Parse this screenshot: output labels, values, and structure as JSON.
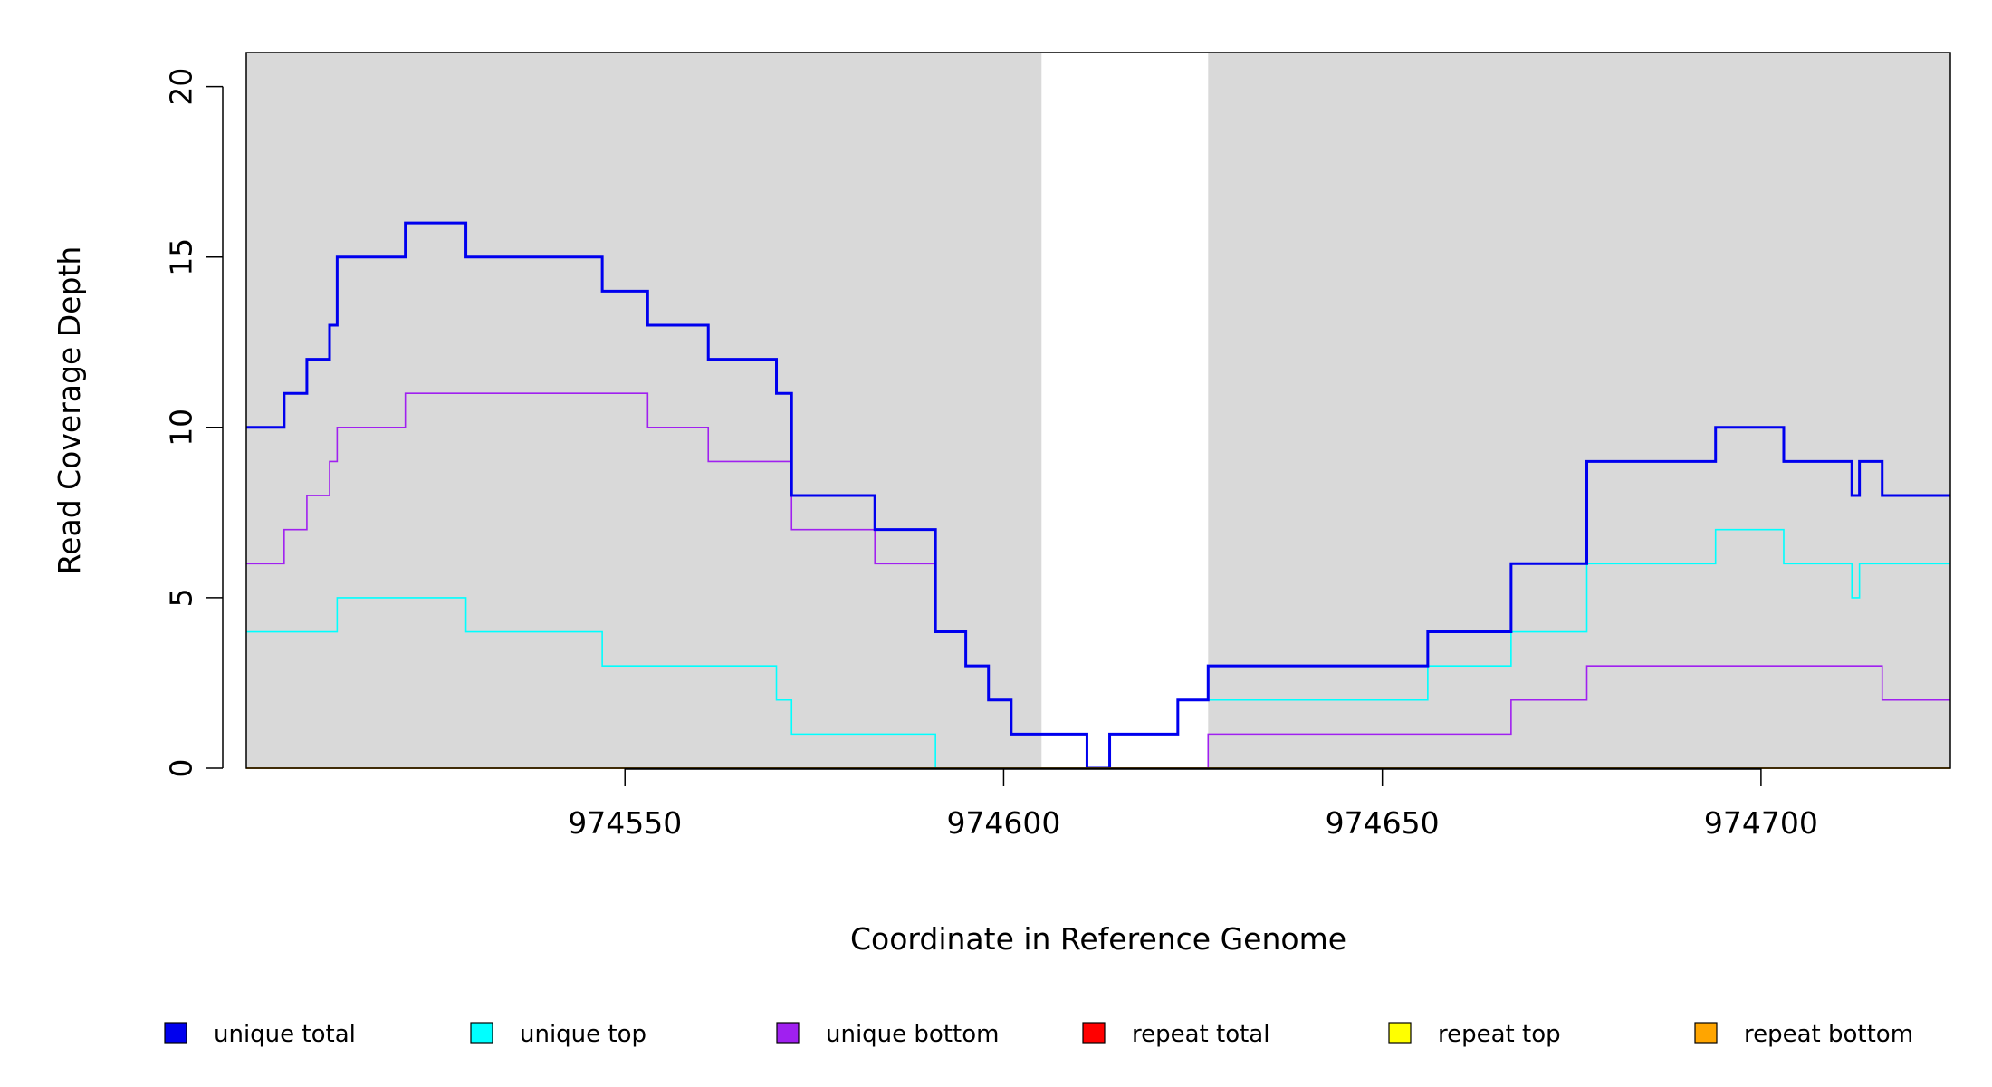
{
  "chart_data": {
    "type": "line",
    "step": true,
    "xlabel": "Coordinate in Reference Genome",
    "ylabel": "Read Coverage Depth",
    "xlim": [
      974500,
      974725
    ],
    "ylim": [
      0,
      21
    ],
    "x_ticks": [
      974550,
      974600,
      974650,
      974700
    ],
    "y_ticks": [
      0,
      5,
      10,
      15,
      20
    ],
    "background_color": "#d9d9d9",
    "shading": [
      {
        "from": 974500,
        "to": 974605
      },
      {
        "from": 974627,
        "to": 974725
      }
    ],
    "series": [
      {
        "name": "unique total",
        "color": "#0000ee",
        "points": [
          [
            974500,
            10
          ],
          [
            974505,
            11
          ],
          [
            974508,
            12
          ],
          [
            974511,
            13
          ],
          [
            974512,
            15
          ],
          [
            974521,
            16
          ],
          [
            974529,
            15
          ],
          [
            974547,
            14
          ],
          [
            974553,
            13
          ],
          [
            974561,
            12
          ],
          [
            974570,
            11
          ],
          [
            974572,
            8
          ],
          [
            974583,
            7
          ],
          [
            974591,
            4
          ],
          [
            974595,
            3
          ],
          [
            974598,
            2
          ],
          [
            974601,
            1
          ],
          [
            974611,
            0
          ],
          [
            974614,
            1
          ],
          [
            974623,
            2
          ],
          [
            974627,
            3
          ],
          [
            974656,
            4
          ],
          [
            974667,
            6
          ],
          [
            974677,
            9
          ],
          [
            974694,
            10
          ],
          [
            974703,
            9
          ],
          [
            974712,
            8
          ],
          [
            974713,
            9
          ],
          [
            974716,
            8
          ],
          [
            974725,
            8
          ]
        ]
      },
      {
        "name": "unique top",
        "color": "#00ffff",
        "points": [
          [
            974500,
            4
          ],
          [
            974512,
            5
          ],
          [
            974529,
            4
          ],
          [
            974547,
            3
          ],
          [
            974570,
            2
          ],
          [
            974572,
            1
          ],
          [
            974591,
            0
          ],
          [
            974614,
            1
          ],
          [
            974623,
            2
          ],
          [
            974656,
            3
          ],
          [
            974667,
            4
          ],
          [
            974677,
            6
          ],
          [
            974694,
            7
          ],
          [
            974703,
            6
          ],
          [
            974712,
            5
          ],
          [
            974713,
            6
          ],
          [
            974725,
            6
          ]
        ]
      },
      {
        "name": "unique bottom",
        "color": "#a020f0",
        "points": [
          [
            974500,
            6
          ],
          [
            974505,
            7
          ],
          [
            974508,
            8
          ],
          [
            974511,
            9
          ],
          [
            974512,
            10
          ],
          [
            974521,
            11
          ],
          [
            974553,
            10
          ],
          [
            974561,
            9
          ],
          [
            974572,
            7
          ],
          [
            974583,
            6
          ],
          [
            974591,
            4
          ],
          [
            974595,
            3
          ],
          [
            974598,
            2
          ],
          [
            974601,
            1
          ],
          [
            974611,
            0
          ],
          [
            974627,
            1
          ],
          [
            974667,
            2
          ],
          [
            974677,
            3
          ],
          [
            974716,
            2
          ],
          [
            974725,
            2
          ]
        ]
      },
      {
        "name": "repeat total",
        "color": "#ff0000",
        "points": [
          [
            974500,
            0
          ],
          [
            974725,
            0
          ]
        ]
      },
      {
        "name": "repeat top",
        "color": "#ffff00",
        "points": [
          [
            974500,
            0
          ],
          [
            974725,
            0
          ]
        ]
      },
      {
        "name": "repeat bottom",
        "color": "#ffa500",
        "points": [
          [
            974500,
            0
          ],
          [
            974725,
            0
          ]
        ]
      }
    ],
    "legend_position": "bottom"
  }
}
